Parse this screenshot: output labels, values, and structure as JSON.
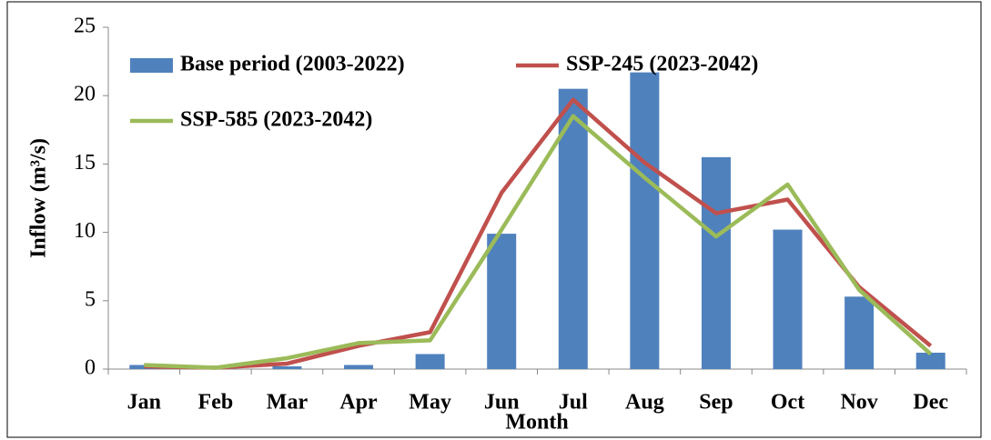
{
  "chart_data": {
    "type": "bar",
    "x_label": "Month",
    "y_label": "Inflow (m³/s)",
    "categories": [
      "Jan",
      "Feb",
      "Mar",
      "Apr",
      "May",
      "Jun",
      "Jul",
      "Aug",
      "Sep",
      "Oct",
      "Nov",
      "Dec"
    ],
    "series": [
      {
        "name": "Base period (2003-2022)",
        "type": "bar",
        "color": "#4f81bd",
        "values": [
          0.3,
          0.1,
          0.2,
          0.3,
          1.1,
          9.9,
          20.5,
          21.7,
          15.5,
          10.2,
          5.3,
          1.2
        ]
      },
      {
        "name": "SSP-245 (2023-2042)",
        "type": "line",
        "color": "#c0504d",
        "values": [
          0.2,
          0.1,
          0.4,
          1.7,
          2.7,
          12.9,
          19.7,
          15.1,
          11.4,
          12.4,
          6.0,
          1.7
        ]
      },
      {
        "name": "SSP-585 (2023-2042)",
        "type": "line",
        "color": "#9bbb59",
        "values": [
          0.3,
          0.1,
          0.8,
          1.9,
          2.1,
          10.2,
          18.5,
          14.0,
          9.7,
          13.5,
          5.8,
          1.1
        ]
      }
    ],
    "ylim": [
      0,
      25
    ],
    "yticks": [
      0,
      5,
      10,
      15,
      20,
      25
    ],
    "grid": false
  }
}
